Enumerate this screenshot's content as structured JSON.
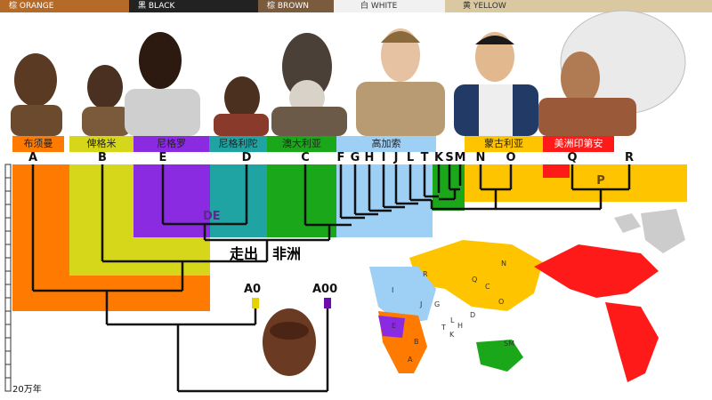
{
  "header": {
    "segments": [
      {
        "label": "棕 ORANGE",
        "bg": "#b56a27",
        "fg": "#ffffff"
      },
      {
        "label": "黑 BLACK",
        "bg": "#222222",
        "fg": "#ffffff"
      },
      {
        "label": "棕 BROWN",
        "bg": "#7a5b3e",
        "fg": "#ffffff"
      },
      {
        "label": "白 WHITE",
        "bg": "#f1f1f1",
        "fg": "#333333"
      },
      {
        "label": "黄 YELLOW",
        "bg": "#d9c8a0",
        "fg": "#333333"
      }
    ]
  },
  "groups": [
    {
      "name": "布须曼",
      "color": "#ff7a00"
    },
    {
      "name": "俾格米",
      "color": "#d6d61a"
    },
    {
      "name": "尼格罗",
      "color": "#8a2be2"
    },
    {
      "name": "尼格利陀",
      "color": "#1fa3a3"
    },
    {
      "name": "澳大利亚",
      "color": "#1aa81a"
    },
    {
      "name": "高加索",
      "color": "#9ecff5"
    },
    {
      "name": "蒙古利亚",
      "color": "#ffc400"
    },
    {
      "name": "美洲印第安",
      "color": "#ff1a1a"
    }
  ],
  "haplogroups": [
    "A",
    "B",
    "E",
    "D",
    "C",
    "F",
    "G",
    "H",
    "I",
    "J",
    "L",
    "T",
    "K",
    "S",
    "M",
    "N",
    "O",
    "Q",
    "R",
    "P"
  ],
  "merge_labels": {
    "de": "DE",
    "a0": "A0",
    "a00": "A00"
  },
  "out_of_africa": {
    "part1": "走出",
    "part2": "非洲"
  },
  "scale_label": "20万年",
  "map_labels": [
    "N",
    "O",
    "Q",
    "C",
    "R",
    "I",
    "J",
    "E",
    "A",
    "B",
    "G",
    "L",
    "H",
    "D",
    "K",
    "T",
    "SM"
  ]
}
